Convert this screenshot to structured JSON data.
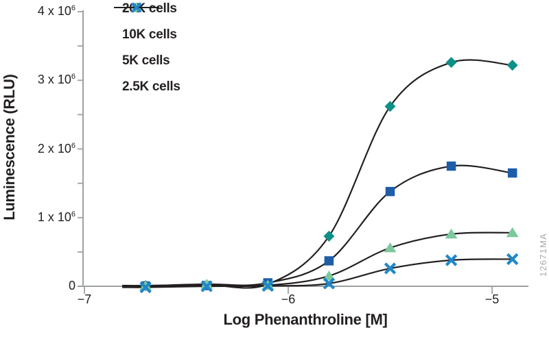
{
  "figure": {
    "watermark": "12671MA"
  },
  "chart_data": {
    "type": "line",
    "title": "",
    "xlabel": "Log Phenanthroline [M]",
    "ylabel": "Luminescence (RLU)",
    "xlim": [
      -7,
      -4.82
    ],
    "ylim": [
      0,
      4000000
    ],
    "grid": false,
    "legend_position": "top-left",
    "axis_color": "#9da0a3",
    "curve_color": "#231f20",
    "x_ticks": [
      {
        "value": -7,
        "label": "−7"
      },
      {
        "value": -6,
        "label": "−6"
      },
      {
        "value": -5,
        "label": "−5"
      }
    ],
    "y_ticks": [
      {
        "value": 4000000,
        "label": "4 x 10",
        "sup": "6"
      },
      {
        "value": 3000000,
        "label": "3 x 10",
        "sup": "6"
      },
      {
        "value": 2000000,
        "label": "2 x 10",
        "sup": "6"
      },
      {
        "value": 1000000,
        "label": "1 x 10",
        "sup": "6"
      },
      {
        "value": 0,
        "label": "0"
      }
    ],
    "y_minor_tick_step": 500000,
    "x": [
      -6.7,
      -6.4,
      -6.1,
      -5.8,
      -5.5,
      -5.2,
      -4.9
    ],
    "series": [
      {
        "name": "20K cells",
        "marker": "diamond",
        "color": "#0e9089",
        "values": [
          10000,
          20000,
          30000,
          730000,
          2620000,
          3260000,
          3220000
        ]
      },
      {
        "name": "10K cells",
        "marker": "square",
        "color": "#1e5da8",
        "values": [
          5000,
          10000,
          50000,
          370000,
          1380000,
          1750000,
          1650000
        ]
      },
      {
        "name": "5K cells",
        "marker": "triangle",
        "color": "#7dc99e",
        "values": [
          5000,
          30000,
          15000,
          150000,
          560000,
          760000,
          780000
        ]
      },
      {
        "name": "2.5K cells",
        "marker": "x",
        "color": "#1f88c9",
        "values": [
          -15000,
          0,
          5000,
          40000,
          260000,
          380000,
          395000
        ]
      }
    ]
  }
}
